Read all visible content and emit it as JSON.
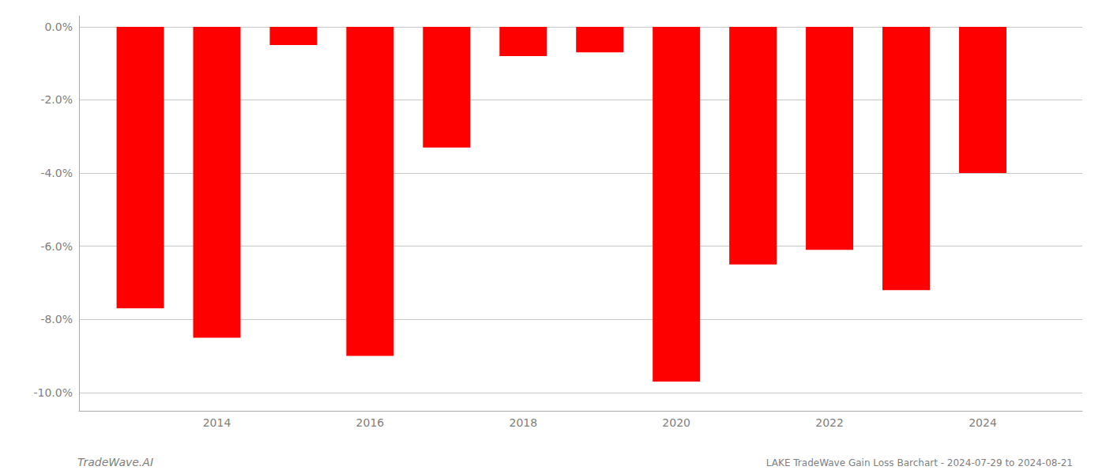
{
  "chart_data": {
    "type": "bar",
    "x": [
      2013,
      2014,
      2015,
      2016,
      2017,
      2018,
      2019,
      2020,
      2021,
      2022,
      2023,
      2024
    ],
    "values": [
      -0.077,
      -0.085,
      -0.005,
      -0.09,
      -0.033,
      -0.008,
      -0.007,
      -0.097,
      -0.065,
      -0.061,
      -0.072,
      -0.04
    ],
    "color": "#ff0000",
    "xlim": [
      2012.2,
      2025.3
    ],
    "xticks": [
      2014,
      2016,
      2018,
      2020,
      2022,
      2024
    ],
    "ylim": [
      -0.105,
      0.003
    ],
    "yticks": [
      {
        "value": 0.0,
        "label": "0.0%"
      },
      {
        "value": -0.02,
        "label": "-2.0%"
      },
      {
        "value": -0.04,
        "label": "-4.0%"
      },
      {
        "value": -0.06,
        "label": "-6.0%"
      },
      {
        "value": -0.08,
        "label": "-8.0%"
      },
      {
        "value": -0.1,
        "label": "-10.0%"
      }
    ],
    "grid": true,
    "annotations": [
      "TradeWave.AI",
      "LAKE TradeWave Gain Loss Barchart - 2024-07-29 to 2024-08-21"
    ]
  }
}
